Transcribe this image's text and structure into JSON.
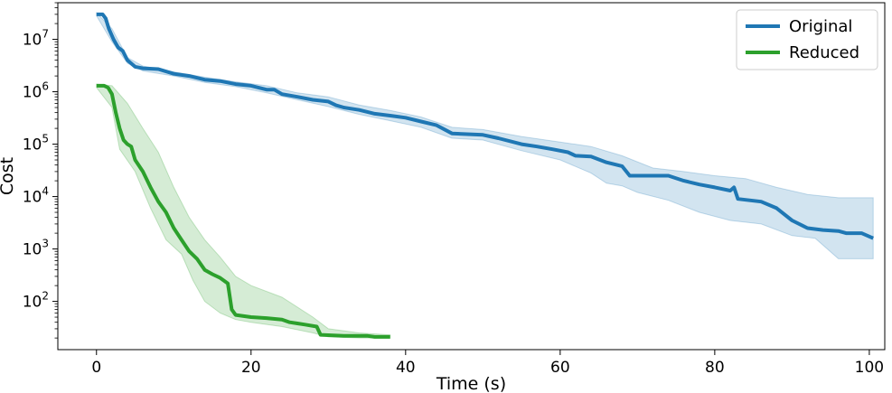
{
  "chart_data": {
    "type": "line",
    "title": "",
    "xlabel": "Time (s)",
    "ylabel": "Cost",
    "yscale": "log",
    "xlim": [
      -5,
      102
    ],
    "ylim": [
      12,
      50000000
    ],
    "xticks": [
      0,
      20,
      40,
      60,
      80,
      100
    ],
    "xtick_labels": [
      "0",
      "20",
      "40",
      "60",
      "80",
      "100"
    ],
    "yticks": [
      100,
      1000,
      10000,
      100000,
      1000000,
      10000000
    ],
    "ytick_labels": [
      {
        "base": "10",
        "exp": "2"
      },
      {
        "base": "10",
        "exp": "3"
      },
      {
        "base": "10",
        "exp": "4"
      },
      {
        "base": "10",
        "exp": "5"
      },
      {
        "base": "10",
        "exp": "6"
      },
      {
        "base": "10",
        "exp": "7"
      }
    ],
    "grid": false,
    "legend_position": "top-right",
    "series": [
      {
        "name": "Original",
        "color": "#1f77b4",
        "points": [
          [
            0,
            30000000
          ],
          [
            0.8,
            30000000
          ],
          [
            1.2,
            25000000
          ],
          [
            1.6,
            16000000
          ],
          [
            2.2,
            10000000
          ],
          [
            2.8,
            7000000
          ],
          [
            3.4,
            6000000
          ],
          [
            4,
            4000000
          ],
          [
            5,
            3000000
          ],
          [
            6,
            2800000
          ],
          [
            8,
            2700000
          ],
          [
            10,
            2200000
          ],
          [
            12,
            2000000
          ],
          [
            14,
            1700000
          ],
          [
            16,
            1600000
          ],
          [
            18,
            1400000
          ],
          [
            20,
            1300000
          ],
          [
            22,
            1100000
          ],
          [
            23,
            1100000
          ],
          [
            24,
            900000
          ],
          [
            26,
            800000
          ],
          [
            28,
            700000
          ],
          [
            30,
            650000
          ],
          [
            31,
            550000
          ],
          [
            32,
            500000
          ],
          [
            34,
            450000
          ],
          [
            36,
            380000
          ],
          [
            38,
            350000
          ],
          [
            40,
            320000
          ],
          [
            42,
            270000
          ],
          [
            44,
            230000
          ],
          [
            46,
            160000
          ],
          [
            50,
            150000
          ],
          [
            52,
            130000
          ],
          [
            55,
            100000
          ],
          [
            57,
            90000
          ],
          [
            59,
            80000
          ],
          [
            61,
            70000
          ],
          [
            62,
            60000
          ],
          [
            64,
            58000
          ],
          [
            66,
            45000
          ],
          [
            68,
            38000
          ],
          [
            69,
            25000
          ],
          [
            74,
            25000
          ],
          [
            76,
            20000
          ],
          [
            78,
            17000
          ],
          [
            80,
            15000
          ],
          [
            82,
            13000
          ],
          [
            82.5,
            15000
          ],
          [
            83,
            9000
          ],
          [
            86,
            8000
          ],
          [
            88,
            6000
          ],
          [
            90,
            3500
          ],
          [
            92,
            2500
          ],
          [
            94,
            2300
          ],
          [
            96,
            2200
          ],
          [
            97,
            2000
          ],
          [
            99,
            2000
          ],
          [
            100.5,
            1600
          ]
        ],
        "band_upper": [
          [
            0,
            32000000
          ],
          [
            2,
            16000000
          ],
          [
            4,
            4500000
          ],
          [
            6,
            3100000
          ],
          [
            10,
            2400000
          ],
          [
            14,
            1900000
          ],
          [
            18,
            1550000
          ],
          [
            22,
            1300000
          ],
          [
            26,
            950000
          ],
          [
            30,
            800000
          ],
          [
            34,
            560000
          ],
          [
            38,
            440000
          ],
          [
            42,
            330000
          ],
          [
            46,
            210000
          ],
          [
            50,
            190000
          ],
          [
            55,
            140000
          ],
          [
            60,
            110000
          ],
          [
            64,
            90000
          ],
          [
            68,
            60000
          ],
          [
            72,
            35000
          ],
          [
            76,
            30000
          ],
          [
            80,
            25000
          ],
          [
            84,
            22000
          ],
          [
            88,
            15000
          ],
          [
            92,
            11000
          ],
          [
            96,
            9500
          ],
          [
            100.5,
            9500
          ]
        ],
        "band_lower": [
          [
            0,
            28000000
          ],
          [
            2,
            9000000
          ],
          [
            4,
            3500000
          ],
          [
            6,
            2500000
          ],
          [
            10,
            2000000
          ],
          [
            14,
            1500000
          ],
          [
            18,
            1250000
          ],
          [
            22,
            950000
          ],
          [
            26,
            700000
          ],
          [
            30,
            520000
          ],
          [
            34,
            370000
          ],
          [
            38,
            280000
          ],
          [
            42,
            210000
          ],
          [
            46,
            130000
          ],
          [
            50,
            120000
          ],
          [
            55,
            75000
          ],
          [
            60,
            50000
          ],
          [
            64,
            28000
          ],
          [
            66,
            18000
          ],
          [
            68,
            16000
          ],
          [
            70,
            12000
          ],
          [
            74,
            8500
          ],
          [
            78,
            5000
          ],
          [
            82,
            3500
          ],
          [
            86,
            3000
          ],
          [
            90,
            1800
          ],
          [
            93,
            1600
          ],
          [
            96,
            650
          ],
          [
            100.5,
            650
          ]
        ]
      },
      {
        "name": "Reduced",
        "color": "#2ca02c",
        "points": [
          [
            0,
            1300000
          ],
          [
            1,
            1300000
          ],
          [
            1.5,
            1200000
          ],
          [
            2,
            900000
          ],
          [
            2.5,
            400000
          ],
          [
            3,
            200000
          ],
          [
            3.5,
            120000
          ],
          [
            4,
            100000
          ],
          [
            4.5,
            90000
          ],
          [
            5,
            50000
          ],
          [
            6,
            30000
          ],
          [
            7,
            15000
          ],
          [
            8,
            8000
          ],
          [
            9,
            5000
          ],
          [
            10,
            2500
          ],
          [
            11,
            1500
          ],
          [
            12,
            900
          ],
          [
            13,
            650
          ],
          [
            14,
            400
          ],
          [
            15,
            330
          ],
          [
            16,
            280
          ],
          [
            17,
            220
          ],
          [
            17.5,
            70
          ],
          [
            18,
            55
          ],
          [
            20,
            50
          ],
          [
            22,
            48
          ],
          [
            24,
            45
          ],
          [
            25,
            40
          ],
          [
            26,
            38
          ],
          [
            27,
            36
          ],
          [
            28.5,
            33
          ],
          [
            29,
            23
          ],
          [
            32,
            22
          ],
          [
            35,
            22
          ],
          [
            36,
            21
          ],
          [
            38,
            21
          ]
        ],
        "band_upper": [
          [
            0,
            1400000
          ],
          [
            2,
            1300000
          ],
          [
            4,
            600000
          ],
          [
            6,
            200000
          ],
          [
            8,
            70000
          ],
          [
            10,
            15000
          ],
          [
            12,
            4000
          ],
          [
            14,
            1500
          ],
          [
            16,
            700
          ],
          [
            18,
            300
          ],
          [
            20,
            200
          ],
          [
            24,
            120
          ],
          [
            28,
            50
          ],
          [
            30,
            30
          ],
          [
            34,
            25
          ],
          [
            38,
            23
          ]
        ],
        "band_lower": [
          [
            0,
            1200000
          ],
          [
            2,
            500000
          ],
          [
            3,
            80000
          ],
          [
            5,
            30000
          ],
          [
            7,
            6000
          ],
          [
            9,
            1500
          ],
          [
            11,
            800
          ],
          [
            12.5,
            250
          ],
          [
            14,
            100
          ],
          [
            16,
            60
          ],
          [
            18,
            45
          ],
          [
            20,
            40
          ],
          [
            24,
            33
          ],
          [
            28,
            25
          ],
          [
            30,
            21
          ],
          [
            34,
            20
          ],
          [
            38,
            20
          ]
        ]
      }
    ]
  }
}
